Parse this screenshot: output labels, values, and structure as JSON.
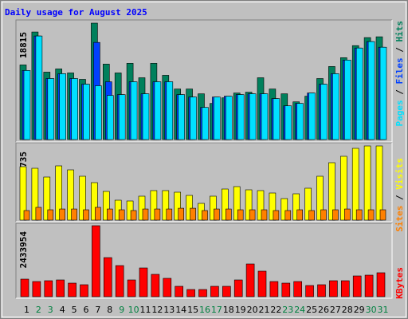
{
  "chart_data": [
    {
      "type": "bar",
      "title": "Daily usage for August 2025",
      "ylim": [
        0,
        18815
      ],
      "legend_separator": "/",
      "series": [
        {
          "name": "Hits",
          "color": "#00805c",
          "values": [
            12067,
            17388,
            10900,
            11419,
            10770,
            9732,
            18815,
            12197,
            10770,
            12327,
            9991,
            12327,
            10381,
            8175,
            8175,
            7396,
            5839,
            6747,
            7526,
            7656,
            9991,
            8175,
            7396,
            6099,
            7007,
            9862,
            11808,
            13235,
            15182,
            16479,
            16609
          ]
        },
        {
          "name": "Files",
          "color": "#0040ff",
          "values": [
            11160,
            16739,
            9862,
            10640,
            9862,
            8953,
            15701,
            9343,
            7266,
            9343,
            7396,
            9343,
            9343,
            7266,
            6877,
            5190,
            6877,
            7007,
            7266,
            7396,
            7396,
            6618,
            5450,
            5839,
            7526,
            8953,
            10640,
            12846,
            14793,
            15831,
            14922
          ]
        },
        {
          "name": "Pages",
          "color": "#00e0ff",
          "values": [
            11160,
            16739,
            9862,
            10640,
            9862,
            8953,
            8694,
            7137,
            7266,
            9343,
            7396,
            9343,
            9343,
            7266,
            6877,
            5190,
            6877,
            7007,
            7266,
            7396,
            7396,
            6618,
            5450,
            5839,
            7526,
            8953,
            10640,
            12846,
            14793,
            15831,
            14922
          ]
        }
      ]
    },
    {
      "type": "bar",
      "ylim": [
        0,
        6735
      ],
      "legend_separator": "/",
      "series": [
        {
          "name": "Visits",
          "color": "#ffff00",
          "values": [
            4852,
            4707,
            3911,
            4925,
            4562,
            3983,
            3404,
            2607,
            1810,
            1738,
            2173,
            2680,
            2680,
            2535,
            2245,
            1521,
            2173,
            2824,
            3042,
            2752,
            2680,
            2462,
            1955,
            2390,
            2897,
            3983,
            5214,
            5794,
            6518,
            6735,
            6735
          ]
        },
        {
          "name": "Sites",
          "color": "#ff8000",
          "values": [
            870,
            1160,
            940,
            1010,
            1010,
            940,
            1160,
            1010,
            940,
            870,
            1010,
            1010,
            1010,
            1080,
            1080,
            870,
            1010,
            1010,
            940,
            940,
            940,
            870,
            870,
            940,
            870,
            940,
            940,
            1010,
            940,
            940,
            940
          ]
        }
      ]
    },
    {
      "type": "bar",
      "ylim": [
        0,
        2433954
      ],
      "series": [
        {
          "name": "KBytes",
          "color": "#ff0000",
          "values": [
            601652,
            519617,
            546955,
            574304,
            464923,
            410216,
            2433954,
            1340068,
            1066592,
            574304,
            984543,
            765756,
            629012,
            355524,
            246133,
            246133,
            355524,
            355524,
            574304,
            1121289,
            875150,
            519617,
            464923,
            519617,
            382867,
            410216,
            546955,
            546955,
            711048,
            738395,
            820434
          ]
        }
      ],
      "categories": [
        "1",
        "2",
        "3",
        "4",
        "5",
        "6",
        "7",
        "8",
        "9",
        "10",
        "11",
        "12",
        "13",
        "14",
        "15",
        "16",
        "17",
        "18",
        "19",
        "20",
        "21",
        "22",
        "23",
        "24",
        "25",
        "26",
        "27",
        "28",
        "29",
        "30",
        "31"
      ],
      "category_colors": [
        "#000000",
        "#008040",
        "#008040",
        "#000000",
        "#000000",
        "#000000",
        "#000000",
        "#000000",
        "#008040",
        "#008040",
        "#000000",
        "#000000",
        "#000000",
        "#000000",
        "#000000",
        "#008040",
        "#008040",
        "#000000",
        "#000000",
        "#000000",
        "#000000",
        "#000000",
        "#008040",
        "#008040",
        "#000000",
        "#000000",
        "#000000",
        "#000000",
        "#000000",
        "#008040",
        "#008040"
      ]
    }
  ]
}
